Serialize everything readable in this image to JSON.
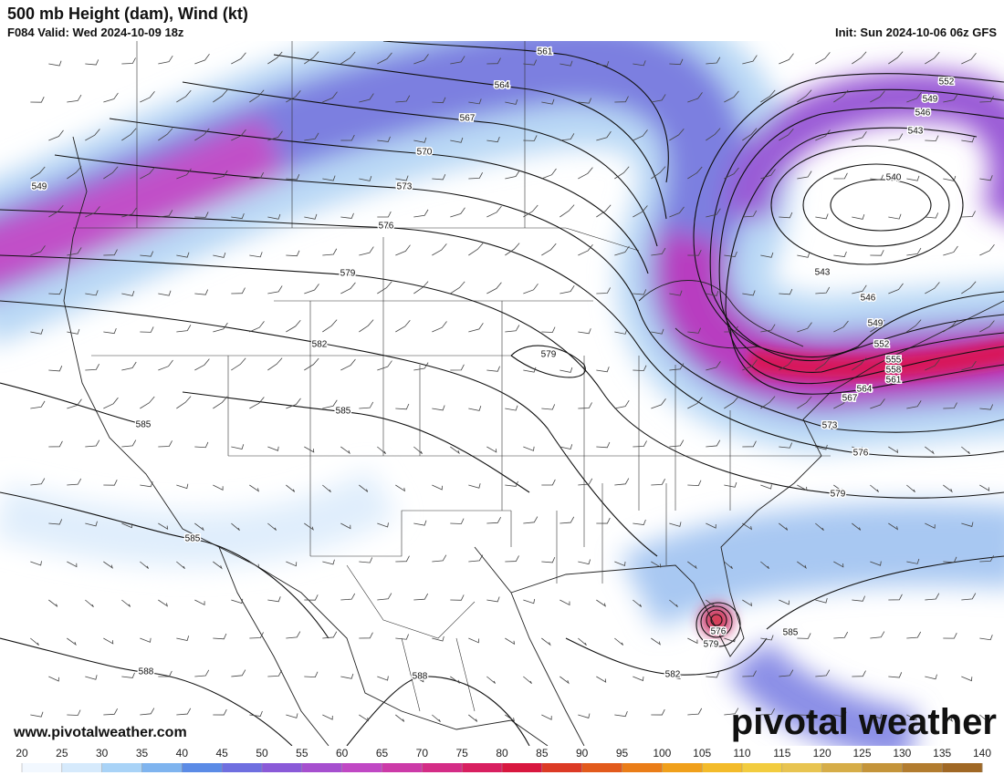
{
  "header": {
    "title": "500 mb Height (dam), Wind (kt)",
    "valid": "F084 Valid: Wed 2024-10-09 18z",
    "init": "Init: Sun 2024-10-06 06z GFS"
  },
  "map": {
    "contour_labels": [
      561,
      564,
      567,
      570,
      573,
      576,
      579,
      582,
      585,
      585,
      585,
      588,
      588,
      579,
      552,
      549,
      546,
      543,
      540,
      543,
      546,
      549,
      552,
      555,
      558,
      561,
      564,
      567,
      573,
      576,
      579,
      576,
      579,
      582,
      585,
      549
    ]
  },
  "footer": {
    "website": "www.pivotalweather.com",
    "logo": "pivotal weather"
  },
  "colorbar": {
    "ticks": [
      20,
      25,
      30,
      35,
      40,
      45,
      50,
      55,
      60,
      65,
      70,
      75,
      80,
      85,
      90,
      95,
      100,
      105,
      110,
      115,
      120,
      125,
      130,
      135,
      140
    ]
  }
}
